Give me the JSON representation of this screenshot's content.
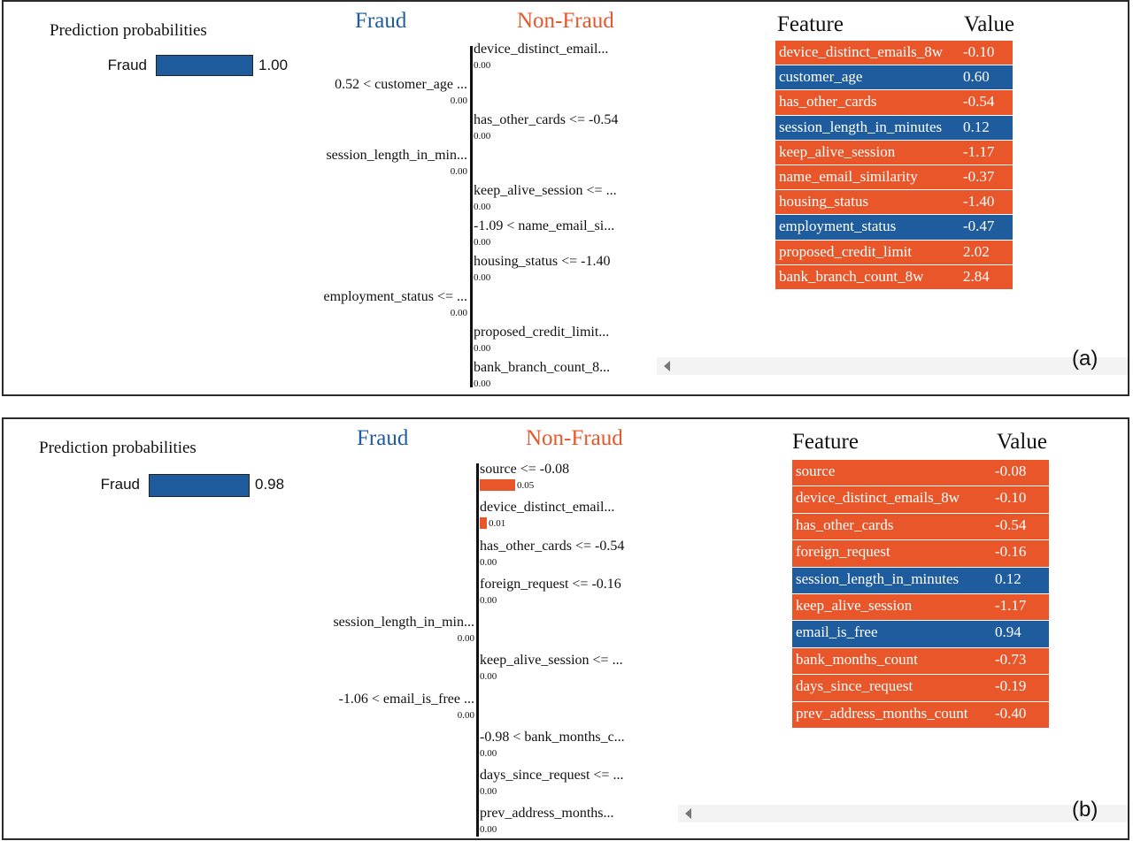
{
  "colors": {
    "fraud": "#1f5c9e",
    "nonfraud": "#e8562a"
  },
  "chart_data": [
    {
      "type": "bar",
      "panel_label": "(a)",
      "prediction": {
        "title": "Prediction probabilities",
        "class": "Fraud",
        "probability": 1.0,
        "probability_label": "1.00"
      },
      "class_headers": {
        "negative": "Fraud",
        "positive": "Non-Fraud"
      },
      "explanation": [
        {
          "label": "device_distinct_email...",
          "side": "Non-Fraud",
          "weight": 0.0,
          "weight_label": "0.00"
        },
        {
          "label": "0.52 < customer_age ...",
          "side": "Fraud",
          "weight": 0.0,
          "weight_label": "0.00"
        },
        {
          "label": "has_other_cards <= -0.54",
          "side": "Non-Fraud",
          "weight": 0.0,
          "weight_label": "0.00"
        },
        {
          "label": "session_length_in_min...",
          "side": "Fraud",
          "weight": 0.0,
          "weight_label": "0.00"
        },
        {
          "label": "keep_alive_session <= ...",
          "side": "Non-Fraud",
          "weight": 0.0,
          "weight_label": "0.00"
        },
        {
          "label": "-1.09 < name_email_si...",
          "side": "Non-Fraud",
          "weight": 0.0,
          "weight_label": "0.00"
        },
        {
          "label": "housing_status <= -1.40",
          "side": "Non-Fraud",
          "weight": 0.0,
          "weight_label": "0.00"
        },
        {
          "label": "employment_status <= ...",
          "side": "Fraud",
          "weight": 0.0,
          "weight_label": "0.00"
        },
        {
          "label": "proposed_credit_limit...",
          "side": "Non-Fraud",
          "weight": 0.0,
          "weight_label": "0.00"
        },
        {
          "label": "bank_branch_count_8...",
          "side": "Non-Fraud",
          "weight": 0.0,
          "weight_label": "0.00"
        }
      ],
      "table": {
        "headers": [
          "Feature",
          "Value"
        ],
        "rows": [
          {
            "feature": "device_distinct_emails_8w",
            "value": "-0.10",
            "side": "Non-Fraud"
          },
          {
            "feature": "customer_age",
            "value": "0.60",
            "side": "Fraud"
          },
          {
            "feature": "has_other_cards",
            "value": "-0.54",
            "side": "Non-Fraud"
          },
          {
            "feature": "session_length_in_minutes",
            "value": "0.12",
            "side": "Fraud"
          },
          {
            "feature": "keep_alive_session",
            "value": "-1.17",
            "side": "Non-Fraud"
          },
          {
            "feature": "name_email_similarity",
            "value": "-0.37",
            "side": "Non-Fraud"
          },
          {
            "feature": "housing_status",
            "value": "-1.40",
            "side": "Non-Fraud"
          },
          {
            "feature": "employment_status",
            "value": "-0.47",
            "side": "Fraud"
          },
          {
            "feature": "proposed_credit_limit",
            "value": "2.02",
            "side": "Non-Fraud"
          },
          {
            "feature": "bank_branch_count_8w",
            "value": "2.84",
            "side": "Non-Fraud"
          }
        ]
      }
    },
    {
      "type": "bar",
      "panel_label": "(b)",
      "prediction": {
        "title": "Prediction probabilities",
        "class": "Fraud",
        "probability": 0.98,
        "probability_label": "0.98"
      },
      "class_headers": {
        "negative": "Fraud",
        "positive": "Non-Fraud"
      },
      "explanation": [
        {
          "label": "source <= -0.08",
          "side": "Non-Fraud",
          "weight": 0.05,
          "weight_label": "0.05"
        },
        {
          "label": "device_distinct_email...",
          "side": "Non-Fraud",
          "weight": 0.01,
          "weight_label": "0.01"
        },
        {
          "label": "has_other_cards <= -0.54",
          "side": "Non-Fraud",
          "weight": 0.0,
          "weight_label": "0.00"
        },
        {
          "label": "foreign_request <= -0.16",
          "side": "Non-Fraud",
          "weight": 0.0,
          "weight_label": "0.00"
        },
        {
          "label": "session_length_in_min...",
          "side": "Fraud",
          "weight": 0.0,
          "weight_label": "0.00"
        },
        {
          "label": "keep_alive_session <= ...",
          "side": "Non-Fraud",
          "weight": 0.0,
          "weight_label": "0.00"
        },
        {
          "label": "-1.06 < email_is_free ...",
          "side": "Fraud",
          "weight": 0.0,
          "weight_label": "0.00"
        },
        {
          "label": "-0.98 < bank_months_c...",
          "side": "Non-Fraud",
          "weight": 0.0,
          "weight_label": "0.00"
        },
        {
          "label": "days_since_request <= ...",
          "side": "Non-Fraud",
          "weight": 0.0,
          "weight_label": "0.00"
        },
        {
          "label": "prev_address_months...",
          "side": "Non-Fraud",
          "weight": 0.0,
          "weight_label": "0.00"
        }
      ],
      "table": {
        "headers": [
          "Feature",
          "Value"
        ],
        "rows": [
          {
            "feature": "source",
            "value": "-0.08",
            "side": "Non-Fraud"
          },
          {
            "feature": "device_distinct_emails_8w",
            "value": "-0.10",
            "side": "Non-Fraud"
          },
          {
            "feature": "has_other_cards",
            "value": "-0.54",
            "side": "Non-Fraud"
          },
          {
            "feature": "foreign_request",
            "value": "-0.16",
            "side": "Non-Fraud"
          },
          {
            "feature": "session_length_in_minutes",
            "value": "0.12",
            "side": "Fraud"
          },
          {
            "feature": "keep_alive_session",
            "value": "-1.17",
            "side": "Non-Fraud"
          },
          {
            "feature": "email_is_free",
            "value": "0.94",
            "side": "Fraud"
          },
          {
            "feature": "bank_months_count",
            "value": "-0.73",
            "side": "Non-Fraud"
          },
          {
            "feature": "days_since_request",
            "value": "-0.19",
            "side": "Non-Fraud"
          },
          {
            "feature": "prev_address_months_count",
            "value": "-0.40",
            "side": "Non-Fraud"
          }
        ]
      }
    }
  ]
}
